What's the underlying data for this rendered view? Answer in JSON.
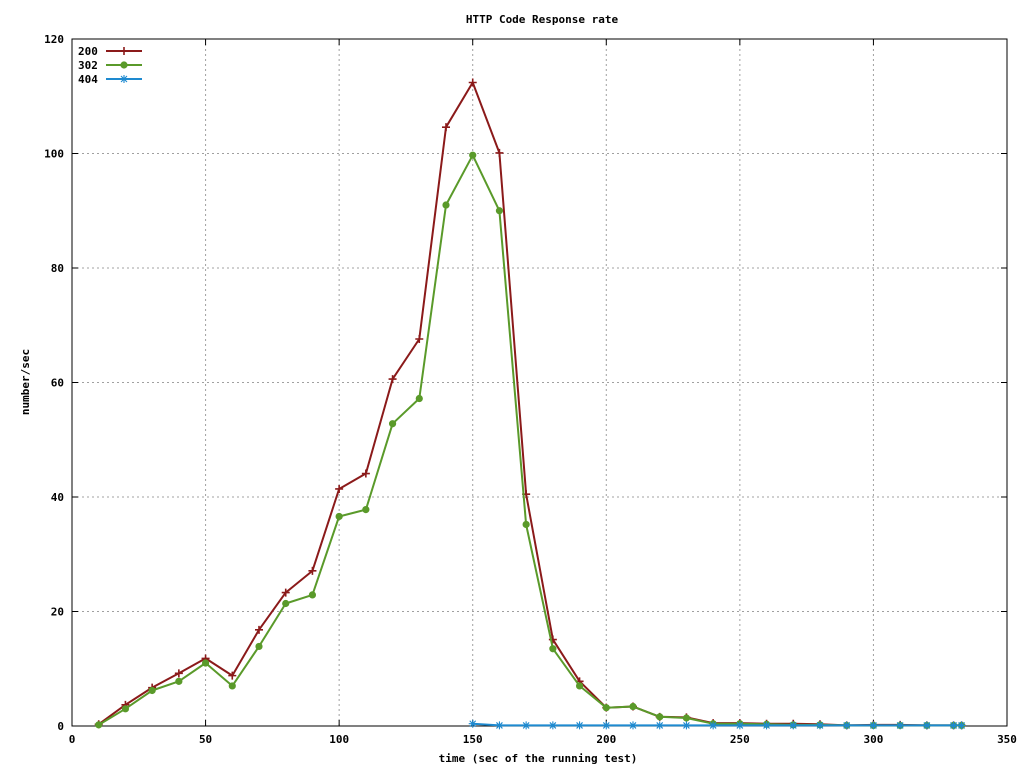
{
  "chart_data": {
    "type": "line",
    "title": "HTTP Code Response rate",
    "xlabel": "time (sec of the running test)",
    "ylabel": "number/sec",
    "xlim": [
      0,
      350
    ],
    "ylim": [
      0,
      120
    ],
    "xticks": [
      0,
      50,
      100,
      150,
      200,
      250,
      300,
      350
    ],
    "yticks": [
      0,
      20,
      40,
      60,
      80,
      100,
      120
    ],
    "grid": true,
    "legend_position": "top-left",
    "series": [
      {
        "name": "200",
        "color": "#8b1a1a",
        "marker": "plus",
        "x": [
          10,
          20,
          30,
          40,
          50,
          60,
          70,
          80,
          90,
          100,
          110,
          120,
          130,
          140,
          150,
          160,
          170,
          180,
          190,
          200,
          210,
          220,
          230,
          240,
          250,
          260,
          270,
          280,
          290,
          300,
          310,
          320,
          330,
          333
        ],
        "values": [
          0.3,
          3.7,
          6.7,
          9.2,
          11.8,
          8.8,
          16.8,
          23.3,
          27.1,
          41.4,
          44.1,
          60.6,
          67.6,
          104.6,
          112.4,
          100.1,
          40.5,
          15.1,
          7.8,
          3.2,
          3.4,
          1.6,
          1.5,
          0.5,
          0.5,
          0.4,
          0.4,
          0.3,
          0.1,
          0.2,
          0.2,
          0.1,
          0.1,
          0.1
        ]
      },
      {
        "name": "302",
        "color": "#5a9a2a",
        "marker": "circle",
        "x": [
          10,
          20,
          30,
          40,
          50,
          60,
          70,
          80,
          90,
          100,
          110,
          120,
          130,
          140,
          150,
          160,
          170,
          180,
          190,
          200,
          210,
          220,
          230,
          240,
          250,
          260,
          270,
          280,
          290,
          300,
          310,
          320,
          330,
          333
        ],
        "values": [
          0.2,
          3.0,
          6.2,
          7.8,
          11.0,
          7.0,
          13.9,
          21.4,
          22.9,
          36.6,
          37.8,
          52.8,
          57.2,
          91.0,
          99.7,
          90.0,
          35.2,
          13.5,
          7.0,
          3.2,
          3.4,
          1.6,
          1.4,
          0.4,
          0.4,
          0.3,
          0.2,
          0.2,
          0.1,
          0.1,
          0.1,
          0.1,
          0.1,
          0.1
        ]
      },
      {
        "name": "404",
        "color": "#1e8ad0",
        "marker": "star",
        "x": [
          150,
          160,
          170,
          180,
          190,
          200,
          210,
          220,
          230,
          240,
          250,
          260,
          270,
          280,
          290,
          300,
          310,
          320,
          330,
          333
        ],
        "values": [
          0.4,
          0.1,
          0.1,
          0.1,
          0.1,
          0.1,
          0.1,
          0.1,
          0.1,
          0.1,
          0.1,
          0.1,
          0.1,
          0.1,
          0.1,
          0.1,
          0.1,
          0.1,
          0.1,
          0.1
        ]
      }
    ]
  }
}
